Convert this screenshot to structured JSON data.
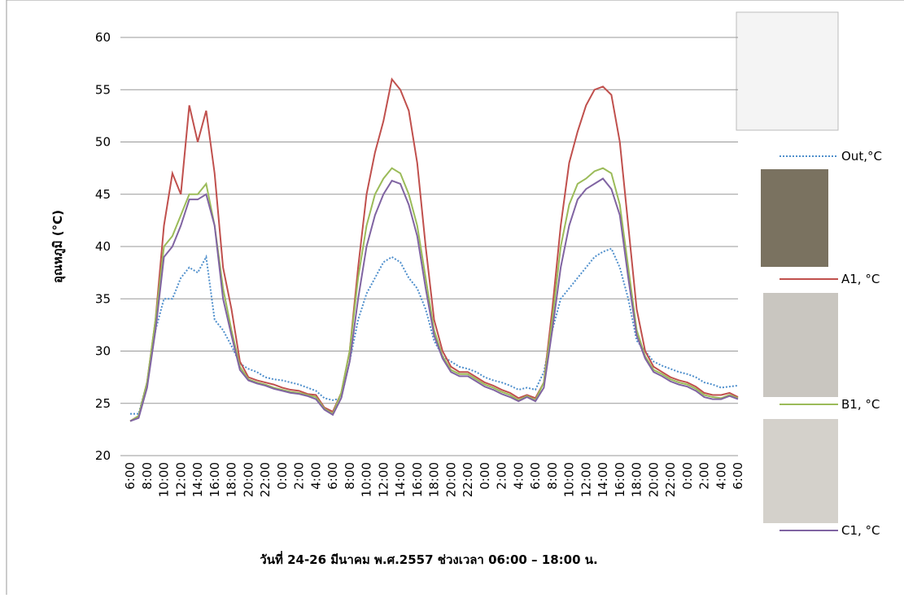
{
  "chart_data": {
    "type": "line",
    "y_label": "อุณหภูมิ (°C)",
    "x_label": "วันที่ 24-26  มีนาคม พ.ศ.2557 ช่วงเวลา 06:00 – 18:00 น.",
    "categories": [
      "6:00",
      null,
      "8:00",
      null,
      "10:00",
      null,
      "12:00",
      null,
      "14:00",
      null,
      "16:00",
      null,
      "18:00",
      null,
      "20:00",
      null,
      "22:00",
      null,
      "0:00",
      null,
      "2:00",
      null,
      "4:00",
      null,
      "6:00",
      null,
      "8:00",
      null,
      "10:00",
      null,
      "12:00",
      null,
      "14:00",
      null,
      "16:00",
      null,
      "18:00",
      null,
      "20:00",
      null,
      "22:00",
      null,
      "0:00",
      null,
      "2:00",
      null,
      "4:00",
      null,
      "6:00",
      null,
      "8:00",
      null,
      "10:00",
      null,
      "12:00",
      null,
      "14:00",
      null,
      "16:00",
      null,
      "18:00",
      null,
      "20:00",
      null,
      "22:00",
      null,
      "0:00",
      null,
      "2:00",
      null,
      "4:00",
      null,
      "6:00"
    ],
    "series": [
      {
        "name": "Out,°C",
        "color": "#4f8fcc",
        "dash": true,
        "values": [
          24,
          24,
          27,
          32,
          35,
          35,
          37,
          38,
          37.5,
          39,
          33,
          32,
          30.5,
          28.8,
          28.3,
          28,
          27.5,
          27.3,
          27.2,
          27,
          26.8,
          26.5,
          26.2,
          25.5,
          25.3,
          25.5,
          29,
          33,
          35.5,
          37,
          38.5,
          39,
          38.5,
          37,
          36,
          34,
          31,
          29.5,
          29,
          28.5,
          28.3,
          28,
          27.5,
          27.2,
          27,
          26.7,
          26.3,
          26.5,
          26.3,
          28,
          32,
          35,
          36,
          37,
          38,
          39,
          39.5,
          39.8,
          38,
          35,
          31,
          30,
          29,
          28.6,
          28.3,
          28,
          27.8,
          27.5,
          27,
          26.8,
          26.5,
          26.6,
          26.7
        ]
      },
      {
        "name": "A1, °C",
        "color": "#c0504d",
        "dash": false,
        "values": [
          23.3,
          23.8,
          27,
          33,
          42,
          47,
          45,
          53.5,
          50,
          53,
          47,
          38,
          34,
          29,
          27.5,
          27.2,
          27,
          26.8,
          26.5,
          26.3,
          26.2,
          25.9,
          25.8,
          24.6,
          24.2,
          26,
          30,
          38,
          45,
          49,
          52,
          56,
          55,
          53,
          48,
          40,
          33,
          30,
          28.5,
          28,
          28,
          27.5,
          27,
          26.7,
          26.3,
          26,
          25.5,
          25.8,
          25.5,
          27,
          34,
          42,
          48,
          51,
          53.5,
          55,
          55.3,
          54.5,
          50,
          42,
          34,
          30,
          28.5,
          28,
          27.5,
          27.2,
          27,
          26.6,
          26,
          25.8,
          25.8,
          26,
          25.6
        ]
      },
      {
        "name": "B1, °C",
        "color": "#9bbb59",
        "dash": false,
        "values": [
          23.3,
          23.8,
          27,
          33,
          40,
          41,
          43,
          45,
          45,
          46,
          42,
          36,
          32,
          28.5,
          27.3,
          27,
          26.8,
          26.5,
          26.3,
          26.1,
          26,
          25.8,
          25.6,
          24.5,
          24,
          26,
          30,
          37,
          42,
          45,
          46.5,
          47.5,
          47,
          45,
          42,
          37,
          32,
          29.5,
          28.2,
          27.8,
          27.8,
          27.3,
          26.8,
          26.5,
          26.1,
          25.8,
          25.3,
          25.7,
          25.3,
          27,
          33,
          40,
          44,
          46,
          46.5,
          47.2,
          47.5,
          47,
          44,
          38,
          32,
          29.5,
          28.2,
          27.8,
          27.3,
          27,
          26.8,
          26.4,
          25.8,
          25.6,
          25.5,
          25.8,
          25.5
        ]
      },
      {
        "name": "C1, °C",
        "color": "#8064a2",
        "dash": false,
        "values": [
          23.3,
          23.6,
          26.5,
          32,
          39,
          40,
          42,
          44.5,
          44.5,
          45,
          42,
          35,
          31.5,
          28.2,
          27.2,
          26.9,
          26.7,
          26.4,
          26.2,
          26,
          25.9,
          25.7,
          25.4,
          24.4,
          23.9,
          25.5,
          29,
          35,
          40,
          43,
          45,
          46.3,
          46,
          44,
          41,
          36,
          31.5,
          29.3,
          28,
          27.6,
          27.6,
          27.1,
          26.6,
          26.3,
          25.9,
          25.6,
          25.2,
          25.6,
          25.2,
          26.5,
          32,
          38,
          42,
          44.5,
          45.5,
          46,
          46.5,
          45.5,
          43,
          37,
          31.5,
          29.3,
          28,
          27.6,
          27.1,
          26.8,
          26.6,
          26.2,
          25.6,
          25.4,
          25.4,
          25.7,
          25.4
        ]
      }
    ],
    "ylim": [
      20,
      60
    ],
    "yticks": [
      20,
      25,
      30,
      35,
      40,
      45,
      50,
      55,
      60
    ],
    "grid": true,
    "legend": "right"
  }
}
